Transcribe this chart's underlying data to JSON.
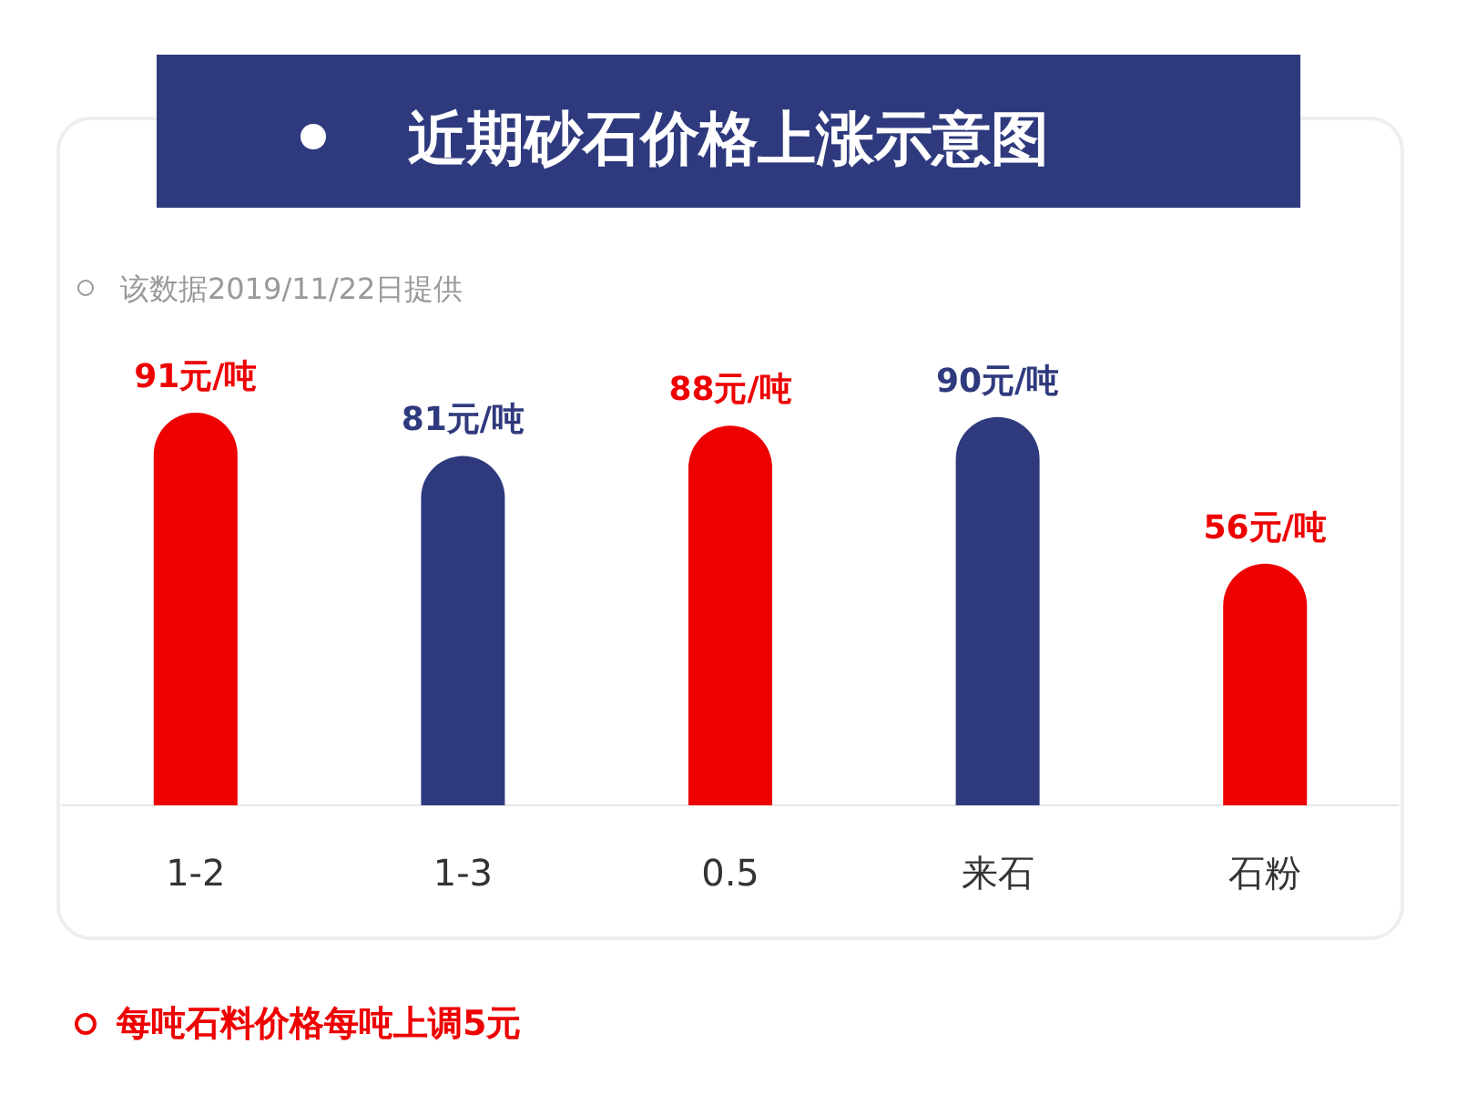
{
  "chart_data": {
    "type": "bar",
    "title": "近期砂石价格上涨示意图",
    "subtitle": "该数据2019/11/22日提供",
    "categories": [
      "1-2",
      "1-3",
      "0.5",
      "来石",
      "石粉"
    ],
    "values": [
      91,
      81,
      88,
      90,
      56
    ],
    "colors": [
      "#ee0000",
      "#2f3a7e",
      "#ee0000",
      "#2f3a7e",
      "#ee0000"
    ],
    "value_labels": [
      "91元/吨",
      "81元/吨",
      "88元/吨",
      "90元/吨",
      "56元/吨"
    ],
    "annotations": [
      "每吨石料价格每吨上调5元"
    ]
  }
}
